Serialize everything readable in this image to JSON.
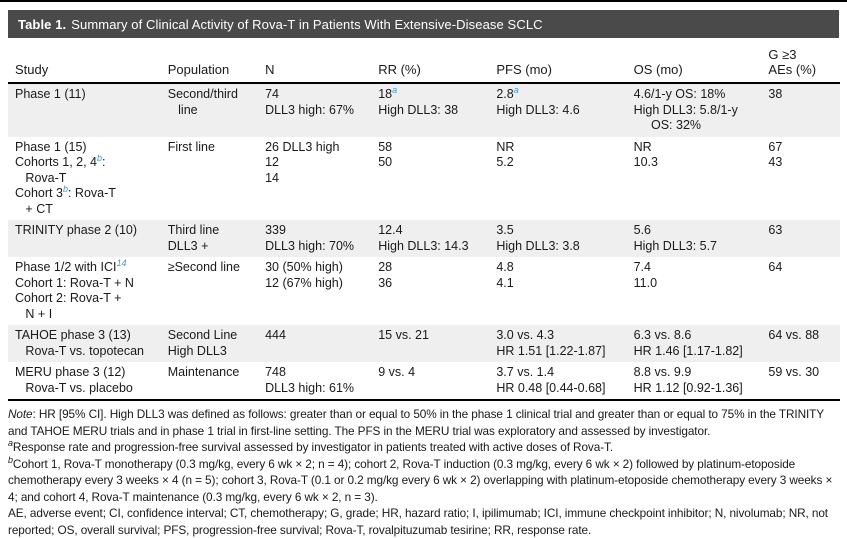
{
  "colors": {
    "header_bar": "#4a4a4a",
    "row_shade": "#efefef",
    "superscript_blue": "#3aa0d6",
    "text": "#1a1a1a"
  },
  "title": {
    "label": "Table 1.",
    "text": "Summary of Clinical Activity of Rova-T in Patients With Extensive-Disease SCLC"
  },
  "table": {
    "headers": [
      "Study",
      "Population",
      "N",
      "RR (%)",
      "PFS (mo)",
      "OS (mo)",
      "G ≥3\nAEs (%)"
    ],
    "rows": [
      {
        "shaded": true,
        "cells": [
          [
            "Phase 1 (11)"
          ],
          [
            "Second/third",
            "   line"
          ],
          [
            "74",
            "DLL3 high: 67%"
          ],
          [
            "18⟦a⟧",
            "High DLL3: 38"
          ],
          [
            "2.8⟦a⟧",
            "High DLL3: 4.6"
          ],
          [
            "4.6/1-y OS: 18%",
            "High DLL3: 5.8/1-y",
            "     OS: 32%"
          ],
          [
            "38"
          ]
        ]
      },
      {
        "shaded": false,
        "cells": [
          [
            "Phase 1 (15)",
            "Cohorts 1, 2, 4⟦b⟧:",
            "   Rova-T",
            "Cohort 3⟦b⟧: Rova-T",
            "   + CT"
          ],
          [
            "First line"
          ],
          [
            "26 DLL3 high",
            "12",
            "14"
          ],
          [
            "58",
            "50"
          ],
          [
            "NR",
            "5.2"
          ],
          [
            "NR",
            "10.3"
          ],
          [
            "67",
            "43"
          ]
        ]
      },
      {
        "shaded": true,
        "cells": [
          [
            "TRINITY phase 2 (10)"
          ],
          [
            "Third line",
            "DLL3 +"
          ],
          [
            "339",
            "DLL3 high: 70%"
          ],
          [
            "12.4",
            "High DLL3: 14.3"
          ],
          [
            "3.5",
            "High DLL3: 3.8"
          ],
          [
            "5.6",
            "High DLL3: 5.7"
          ],
          [
            "63"
          ]
        ]
      },
      {
        "shaded": false,
        "cells": [
          [
            "Phase 1/2 with ICI⟦14⟧",
            "Cohort 1: Rova-T + N",
            "Cohort 2: Rova-T +",
            "   N + I"
          ],
          [
            "≥Second line"
          ],
          [
            "30 (50% high)",
            "12 (67% high)"
          ],
          [
            "28",
            "36"
          ],
          [
            "4.8",
            "4.1"
          ],
          [
            "7.4",
            "11.0"
          ],
          [
            "64"
          ]
        ]
      },
      {
        "shaded": true,
        "cells": [
          [
            "TAHOE phase 3 (13)",
            "   Rova-T vs. topotecan"
          ],
          [
            "Second Line",
            "High DLL3"
          ],
          [
            "444"
          ],
          [
            "15 vs. 21"
          ],
          [
            "3.0 vs. 4.3",
            "HR 1.51 [1.22-1.87]"
          ],
          [
            "6.3 vs. 8.6",
            "HR 1.46 [1.17-1.82]"
          ],
          [
            "64 vs. 88"
          ]
        ]
      },
      {
        "shaded": false,
        "cells": [
          [
            "MERU phase 3 (12)",
            "   Rova-T vs. placebo"
          ],
          [
            "Maintenance"
          ],
          [
            "748",
            "DLL3 high: 61%"
          ],
          [
            "9 vs. 4"
          ],
          [
            "3.7 vs. 1.4",
            "HR 0.48 [0.44-0.68]"
          ],
          [
            "8.8 vs. 9.9",
            "HR 1.12 [0.92-1.36]"
          ],
          [
            "59 vs. 30"
          ]
        ]
      }
    ]
  },
  "footnotes": {
    "note_label": "Note",
    "note_text": ": HR [95% CI]. High DLL3 was defined as follows: greater than or equal to 50% in the phase 1 clinical trial and greater than or equal to 75% in the TRINITY and TAHOE MERU trials and in phase 1 trial in first-line setting. The PFS in the MERU trial was exploratory and assessed by investigator.",
    "a_marker": "a",
    "a_text": "Response rate and progression-free survival assessed by investigator in patients treated with active doses of Rova-T.",
    "b_marker": "b",
    "b_text": "Cohort 1, Rova-T monotherapy (0.3 mg/kg, every 6 wk × 2; n = 4); cohort 2, Rova-T induction (0.3 mg/kg, every 6 wk × 2) followed by platinum-etoposide chemotherapy every 3 weeks × 4 (n = 5); cohort 3, Rova-T (0.1 or 0.2 mg/kg every 6 wk × 2) overlapping with platinum-etoposide chemotherapy every 3 weeks × 4; and cohort 4, Rova-T maintenance (0.3 mg/kg, every 6 wk × 2, n = 3).",
    "abbreviations": "AE, adverse event; CI, confidence interval; CT, chemotherapy; G, grade; HR, hazard ratio; I, ipilimumab; ICI, immune checkpoint inhibitor; N, nivolumab; NR, not reported; OS, overall survival; PFS, progression-free survival; Rova-T, rovalpituzumab tesirine; RR, response rate."
  }
}
